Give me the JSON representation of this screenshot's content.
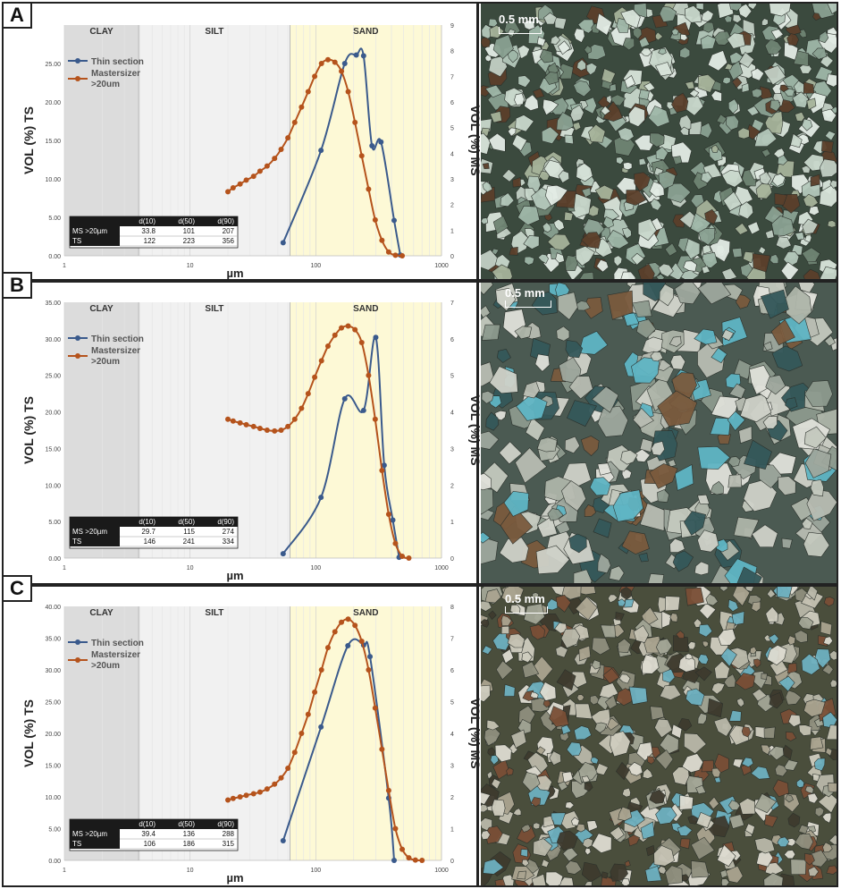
{
  "zone_labels": [
    "CLAY",
    "SILT",
    "SAND"
  ],
  "x_ticks": [
    "1",
    "10",
    "100",
    "1000"
  ],
  "xlabel": "µm",
  "ylabel_left": "VOL (%) TS",
  "ylabel_right": "VOL (%) MS",
  "legend": {
    "ts": "Thin section",
    "ms_line1": "Mastersizer",
    "ms_line2": ">20um"
  },
  "table_header": [
    "d(10)",
    "d(50)",
    "d(90)"
  ],
  "scale_label": "0.5 mm",
  "colors": {
    "ts": "#3a5a8c",
    "ms": "#b5531c",
    "clay": "#dcdcdc",
    "silt": "#f1f1f1",
    "sand": "#fdf9d6"
  },
  "panels": [
    {
      "letter": "A",
      "left_ticks": [
        "0.00",
        "5.00",
        "10.00",
        "15.00",
        "20.00",
        "25.00"
      ],
      "right_ticks": [
        "0",
        "1",
        "2",
        "3",
        "4",
        "5",
        "6",
        "7",
        "8",
        "9"
      ],
      "table_rows": [
        {
          "label": "MS >20µm",
          "values": [
            "33.8",
            "101",
            "207"
          ]
        },
        {
          "label": "TS",
          "values": [
            "122",
            "223",
            "356"
          ]
        }
      ]
    },
    {
      "letter": "B",
      "left_ticks": [
        "0.00",
        "5.00",
        "10.00",
        "15.00",
        "20.00",
        "25.00",
        "30.00",
        "35.00"
      ],
      "right_ticks": [
        "0",
        "1",
        "2",
        "3",
        "4",
        "5",
        "6",
        "7"
      ],
      "table_rows": [
        {
          "label": "MS >20µm",
          "values": [
            "29.7",
            "115",
            "274"
          ]
        },
        {
          "label": "TS",
          "values": [
            "146",
            "241",
            "334"
          ]
        }
      ]
    },
    {
      "letter": "C",
      "left_ticks": [
        "0.00",
        "5.00",
        "10.00",
        "15.00",
        "20.00",
        "25.00",
        "30.00",
        "35.00",
        "40.00"
      ],
      "right_ticks": [
        "0",
        "1",
        "2",
        "3",
        "4",
        "5",
        "6",
        "7",
        "8"
      ],
      "table_rows": [
        {
          "label": "MS >20µm",
          "values": [
            "39.4",
            "136",
            "288"
          ]
        },
        {
          "label": "TS",
          "values": [
            "106",
            "186",
            "315"
          ]
        }
      ]
    }
  ],
  "chart_data": [
    {
      "type": "line",
      "x_scale": "log",
      "xlim": [
        1,
        1000
      ],
      "ylim_left": [
        0,
        30
      ],
      "ylim_right": [
        0,
        9
      ],
      "series": [
        {
          "name": "Thin section",
          "axis": "left",
          "x": [
            55,
            110,
            170,
            210,
            240,
            280,
            330,
            420,
            470
          ],
          "y": [
            1.7,
            13.7,
            25.0,
            26.1,
            26.0,
            14.3,
            14.8,
            4.6,
            0.1
          ]
        },
        {
          "name": "Mastersizer >20um",
          "axis": "right",
          "x": [
            20,
            22,
            25,
            28,
            32,
            36,
            41,
            47,
            53,
            60,
            68,
            77,
            87,
            98,
            111,
            125,
            142,
            160,
            181,
            205,
            232,
            263,
            297,
            336,
            380,
            430,
            487
          ],
          "y": [
            2.5,
            2.65,
            2.8,
            2.95,
            3.1,
            3.3,
            3.5,
            3.8,
            4.15,
            4.6,
            5.2,
            5.8,
            6.4,
            7.0,
            7.5,
            7.65,
            7.55,
            7.2,
            6.4,
            5.2,
            3.9,
            2.6,
            1.4,
            0.6,
            0.15,
            0.02,
            0.0
          ]
        }
      ]
    },
    {
      "type": "line",
      "x_scale": "log",
      "xlim": [
        1,
        1000
      ],
      "ylim_left": [
        0,
        35
      ],
      "ylim_right": [
        0,
        7
      ],
      "series": [
        {
          "name": "Thin section",
          "axis": "left",
          "x": [
            55,
            110,
            170,
            240,
            300,
            350,
            410,
            460
          ],
          "y": [
            0.6,
            8.3,
            21.8,
            20.2,
            30.2,
            12.7,
            5.2,
            0.1
          ]
        },
        {
          "name": "Mastersizer >20um",
          "axis": "right",
          "x": [
            20,
            22,
            25,
            28,
            32,
            36,
            41,
            47,
            53,
            60,
            68,
            77,
            87,
            98,
            111,
            125,
            142,
            160,
            181,
            205,
            232,
            263,
            297,
            336,
            380,
            430,
            487,
            550
          ],
          "y": [
            3.8,
            3.75,
            3.7,
            3.65,
            3.6,
            3.55,
            3.5,
            3.48,
            3.5,
            3.6,
            3.8,
            4.1,
            4.5,
            4.95,
            5.4,
            5.8,
            6.1,
            6.3,
            6.35,
            6.25,
            5.9,
            5.0,
            3.8,
            2.4,
            1.2,
            0.4,
            0.05,
            0.0
          ]
        }
      ]
    },
    {
      "type": "line",
      "x_scale": "log",
      "xlim": [
        1,
        1000
      ],
      "ylim_left": [
        0,
        40
      ],
      "ylim_right": [
        0,
        8
      ],
      "series": [
        {
          "name": "Thin section",
          "axis": "left",
          "x": [
            55,
            110,
            180,
            240,
            270,
            380,
            420
          ],
          "y": [
            3.1,
            21.0,
            33.8,
            33.9,
            32.1,
            9.8,
            0.0
          ]
        },
        {
          "name": "Mastersizer >20um",
          "axis": "right",
          "x": [
            20,
            22,
            25,
            28,
            32,
            36,
            41,
            47,
            53,
            60,
            68,
            77,
            87,
            98,
            111,
            125,
            142,
            160,
            181,
            205,
            232,
            263,
            297,
            336,
            380,
            430,
            487,
            550,
            620,
            700
          ],
          "y": [
            1.9,
            1.95,
            2.0,
            2.05,
            2.1,
            2.15,
            2.25,
            2.4,
            2.6,
            2.9,
            3.4,
            4.0,
            4.6,
            5.3,
            6.0,
            6.7,
            7.2,
            7.5,
            7.6,
            7.4,
            6.9,
            6.0,
            4.8,
            3.5,
            2.2,
            1.0,
            0.35,
            0.08,
            0.01,
            0.0
          ]
        }
      ]
    }
  ]
}
